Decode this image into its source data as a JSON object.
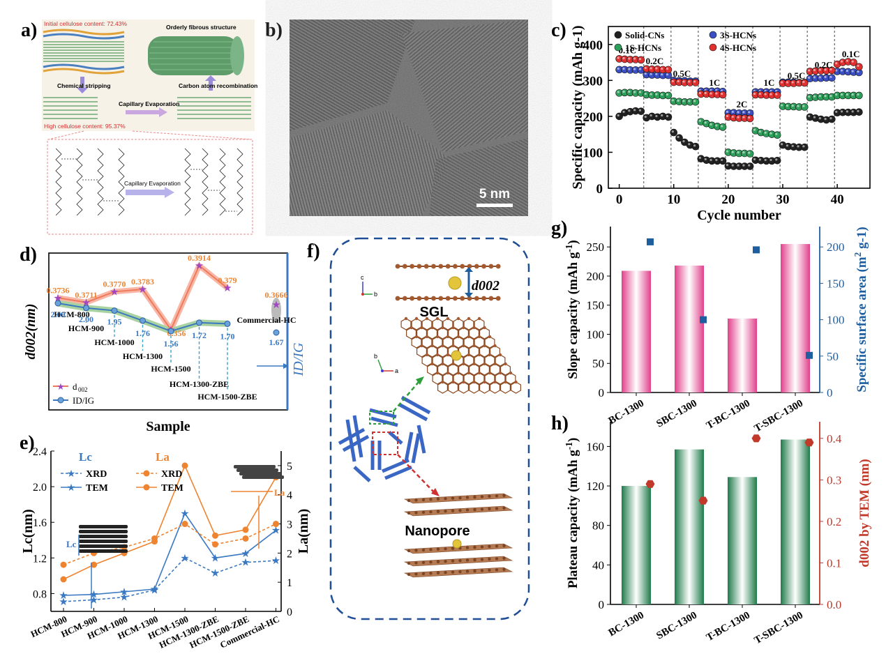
{
  "panels": {
    "a": "a)",
    "b": "b)",
    "c": "c)",
    "d": "d)",
    "e": "e)",
    "f": "f)",
    "g": "g)",
    "h": "h)"
  },
  "panel_a": {
    "initial": "Initial cellulose content: 72.43%",
    "orderly": "Orderly fibrous structure",
    "chemical": "Chemical stripping",
    "carbon": "Carbon atom recombination",
    "capillary": "Capillary Evaporation",
    "high": "High cellulose content: 95.37%",
    "capillary2": "Capillary Evaporation"
  },
  "panel_b": {
    "scale": "5 nm"
  },
  "panel_f": {
    "d002": "d002",
    "sgl": "SGL",
    "nanopore": "Nanopore",
    "axis_c": "c",
    "axis_b": "b",
    "axis_a": "a",
    "axis_b2": "b"
  },
  "chart_data": [
    {
      "id": "c",
      "type": "scatter",
      "xlabel": "Cycle number",
      "ylabel": "Specific capacity (mAh g-1)",
      "xlim": [
        -2,
        46
      ],
      "ylim": [
        0,
        450
      ],
      "xticks": [
        0,
        10,
        20,
        30,
        40
      ],
      "yticks": [
        0,
        100,
        200,
        300,
        400
      ],
      "dividers": [
        5,
        10,
        15,
        20,
        25,
        30,
        35,
        40
      ],
      "rates": [
        {
          "label": "0.1C",
          "x": 1.5,
          "y": 375
        },
        {
          "label": "0.2C",
          "x": 6.5,
          "y": 345
        },
        {
          "label": "0.5C",
          "x": 11.5,
          "y": 310
        },
        {
          "label": "1C",
          "x": 17.5,
          "y": 285
        },
        {
          "label": "2C",
          "x": 22.5,
          "y": 225
        },
        {
          "label": "1C",
          "x": 27.5,
          "y": 285
        },
        {
          "label": "0.5C",
          "x": 32.5,
          "y": 305
        },
        {
          "label": "0.2C",
          "x": 37.5,
          "y": 335
        },
        {
          "label": "0.1C",
          "x": 42.5,
          "y": 365
        }
      ],
      "series": [
        {
          "name": "Solid-CNs",
          "color": "#222222",
          "y": [
            200,
            210,
            213,
            215,
            214,
            196,
            200,
            198,
            200,
            198,
            155,
            140,
            128,
            120,
            116,
            82,
            78,
            76,
            76,
            76,
            62,
            61,
            61,
            61,
            61,
            78,
            77,
            76,
            76,
            77,
            120,
            116,
            115,
            114,
            114,
            198,
            195,
            192,
            190,
            192,
            210,
            211,
            211,
            211,
            212
          ]
        },
        {
          "name": "1S-HCNs",
          "color": "#2e9e5b",
          "y": [
            265,
            266,
            266,
            265,
            265,
            260,
            259,
            259,
            258,
            258,
            242,
            241,
            240,
            240,
            240,
            185,
            180,
            175,
            172,
            170,
            100,
            98,
            97,
            97,
            96,
            160,
            155,
            152,
            150,
            148,
            228,
            227,
            227,
            226,
            226,
            252,
            253,
            254,
            254,
            254,
            258,
            258,
            258,
            258,
            258
          ]
        },
        {
          "name": "3S-HCNs",
          "color": "#3b4fc4",
          "y": [
            330,
            330,
            329,
            329,
            329,
            316,
            315,
            315,
            314,
            314,
            300,
            299,
            299,
            298,
            298,
            270,
            270,
            270,
            270,
            269,
            210,
            210,
            209,
            209,
            209,
            268,
            268,
            268,
            268,
            268,
            295,
            295,
            295,
            294,
            294,
            305,
            306,
            306,
            307,
            307,
            325,
            325,
            324,
            323,
            322
          ]
        },
        {
          "name": "4S-HCNs",
          "color": "#e03030",
          "y": [
            360,
            359,
            358,
            358,
            357,
            332,
            331,
            331,
            330,
            330,
            295,
            295,
            294,
            294,
            294,
            262,
            262,
            261,
            261,
            260,
            198,
            196,
            195,
            195,
            194,
            260,
            260,
            259,
            259,
            259,
            292,
            292,
            292,
            293,
            293,
            325,
            326,
            327,
            327,
            328,
            345,
            350,
            352,
            350,
            338
          ]
        }
      ]
    },
    {
      "id": "d",
      "type": "line",
      "xlabel": "Sample",
      "ylabel_left": "d002(nm)",
      "ylabel_right": "ID/IG",
      "legend": [
        "d002",
        "ID/IG"
      ],
      "categories": [
        "HCM-800",
        "HCM-900",
        "HCM-1000",
        "HCM-1300",
        "HCM-1500",
        "HCM-1300-ZBE",
        "HCM-1500-ZBE"
      ],
      "d002": [
        0.3736,
        0.3711,
        0.377,
        0.3783,
        0.356,
        0.3914,
        0.379
      ],
      "d002_labels": [
        "0.3736",
        "0.3711",
        "0.3770",
        "0.3783",
        "0.356",
        "0.3914",
        "0.379"
      ],
      "idig": [
        2.09,
        2.0,
        1.95,
        1.76,
        1.56,
        1.72,
        1.7
      ],
      "idig_labels": [
        "2.09",
        "2.00",
        "1.95",
        "1.76",
        "1.56",
        "1.72",
        "1.70"
      ],
      "commercial": {
        "name": "Commercial-HC",
        "d002": 0.3666,
        "d002_label": "0.3666",
        "idig": 1.67,
        "idig_label": "1.67"
      }
    },
    {
      "id": "e",
      "type": "line",
      "ylabel_left": "Lc(nm)",
      "ylabel_right": "La(nm)",
      "legend_lc": "Lc",
      "legend_la": "La",
      "legend_items": [
        "XRD",
        "TEM",
        "XRD",
        "TEM"
      ],
      "categories": [
        "HCM-800",
        "HCM-900",
        "HCM-1000",
        "HCM-1300",
        "HCM-1500",
        "HCM-1300-ZBE",
        "HCM-1500-ZBE",
        "Commercial-HC"
      ],
      "ylim_left": [
        0.6,
        2.4
      ],
      "yticks_left": [
        0.8,
        1.2,
        1.6,
        2.0,
        2.4
      ],
      "ylim_right": [
        0,
        5.5
      ],
      "yticks_right": [
        0,
        1,
        2,
        3,
        4,
        5
      ],
      "series": [
        {
          "name": "Lc XRD",
          "axis": "left",
          "color": "#3a78c2",
          "dash": true,
          "marker": "star",
          "values": [
            0.71,
            0.73,
            0.76,
            0.84,
            1.2,
            1.03,
            1.15,
            1.17
          ]
        },
        {
          "name": "Lc TEM",
          "axis": "left",
          "color": "#3a78c2",
          "dash": false,
          "marker": "star",
          "values": [
            0.78,
            0.79,
            0.82,
            0.85,
            1.7,
            1.2,
            1.25,
            1.51
          ]
        },
        {
          "name": "La XRD",
          "axis": "right",
          "color": "#ee8330",
          "dash": true,
          "marker": "circle",
          "values": [
            1.6,
            2.0,
            2.2,
            2.5,
            3.0,
            2.3,
            2.5,
            3.0
          ]
        },
        {
          "name": "La TEM",
          "axis": "right",
          "color": "#ee8330",
          "dash": false,
          "marker": "circle",
          "values": [
            1.1,
            1.6,
            2.0,
            2.4,
            5.0,
            2.6,
            2.8,
            4.6
          ]
        }
      ]
    },
    {
      "id": "g",
      "type": "bar",
      "categories": [
        "BC-1300",
        "SBC-1300",
        "T-BC-1300",
        "T-SBC-1300"
      ],
      "values": [
        209,
        218,
        127,
        255
      ],
      "ylabel": "Slope capacity (mAh g-1)",
      "ylim": [
        0,
        285
      ],
      "yticks": [
        0,
        50,
        100,
        150,
        200,
        250
      ],
      "secondary": {
        "ylabel": "Specific surface area (m2 g-1)",
        "values": [
          207,
          100,
          196,
          51
        ],
        "ylim": [
          0,
          228
        ],
        "yticks": [
          0,
          50,
          100,
          150,
          200
        ],
        "color": "#1f5e9e"
      }
    },
    {
      "id": "h",
      "type": "bar",
      "categories": [
        "BC-1300",
        "SBC-1300",
        "T-BC-1300",
        "T-SBC-1300"
      ],
      "values": [
        120,
        157,
        129,
        167
      ],
      "ylabel": "Plateau capacity (mAh g-1)",
      "ylim": [
        0,
        185
      ],
      "yticks": [
        0,
        40,
        80,
        120,
        160
      ],
      "secondary": {
        "ylabel": "d002 by TEM (nm)",
        "values": [
          0.29,
          0.25,
          0.4,
          0.39
        ],
        "ylim": [
          0,
          0.44
        ],
        "yticks": [
          0.0,
          0.1,
          0.2,
          0.3,
          0.4
        ],
        "ytick_labels": [
          "0.0",
          "0.1",
          "0.2",
          "0.3",
          "0.4"
        ],
        "color": "#c0392b"
      }
    }
  ]
}
